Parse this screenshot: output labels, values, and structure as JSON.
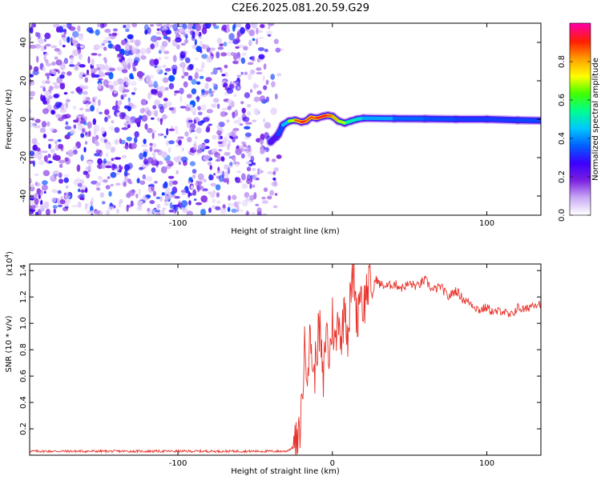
{
  "figure_title": "C2E6.2025.081.20.59.G29",
  "chart_data": [
    {
      "type": "heatmap",
      "title": "",
      "xlabel": "Height of straight line (km)",
      "ylabel": "Frequency (Hz)",
      "xlim": [
        -196,
        135
      ],
      "ylim": [
        -50,
        50
      ],
      "x_ticks": [
        -100,
        0,
        100
      ],
      "x_tick_labels": [
        "-100",
        "",
        "100"
      ],
      "y_ticks": [
        -40,
        -20,
        0,
        20,
        40
      ],
      "y_tick_labels": [
        "-40",
        "-20",
        "0",
        "20",
        "40"
      ],
      "noise_region_x": [
        -196,
        -35
      ],
      "signal_track": {
        "x": [
          -40,
          -35,
          -32,
          -28,
          -24,
          -20,
          -17,
          -14,
          -10,
          -6,
          -3,
          0,
          4,
          8,
          12,
          16,
          20,
          40,
          60,
          80,
          100,
          120,
          135
        ],
        "freq": [
          -12,
          -8,
          -3,
          -1,
          -0.5,
          -1.5,
          -1,
          1,
          0.5,
          1.5,
          2,
          1.5,
          -1,
          -2,
          -1,
          0,
          0.5,
          0.3,
          0.2,
          0,
          0,
          -0.5,
          -0.7
        ],
        "amplitude": [
          0.2,
          0.35,
          0.45,
          0.6,
          0.8,
          0.95,
          0.9,
          0.85,
          0.9,
          0.95,
          0.9,
          0.85,
          0.75,
          0.65,
          0.6,
          0.6,
          0.55,
          0.45,
          0.42,
          0.4,
          0.38,
          0.4,
          0.4
        ]
      },
      "colorbar": {
        "label": "Normalized spectral amplitude",
        "range": [
          0.0,
          1.0
        ],
        "ticks": [
          0.0,
          0.2,
          0.4,
          0.6,
          0.8
        ],
        "tick_labels": [
          "0.0",
          "0.2",
          "0.4",
          "0.6",
          "0.8"
        ],
        "colors": [
          "#ffffff",
          "#c9a8f5",
          "#7a1fe0",
          "#3a00ff",
          "#0060ff",
          "#00c8ff",
          "#00ff90",
          "#40ff00",
          "#ffff00",
          "#ffa000",
          "#ff2000",
          "#ff00a0"
        ]
      }
    },
    {
      "type": "line",
      "title": "",
      "xlabel": "Height of straight line (km)",
      "ylabel": "SNR (10 * v/v)",
      "y_multiplier": "(x10",
      "y_multiplier_exp": "4",
      "y_multiplier_close": ")",
      "xlim": [
        -196,
        135
      ],
      "ylim": [
        0,
        1.45
      ],
      "x_ticks": [
        -100,
        0,
        100
      ],
      "x_tick_labels": [
        "-100",
        "0",
        "100"
      ],
      "y_ticks": [
        0.2,
        0.4,
        0.6,
        0.8,
        1.0,
        1.2,
        1.4
      ],
      "y_tick_labels": [
        "0.2",
        "0.4",
        "0.6",
        "0.8",
        "1.0",
        "1.2",
        "1.4"
      ],
      "line_color": "#e8322a",
      "series": [
        {
          "x": [
            -196,
            -150,
            -100,
            -60,
            -30,
            -22,
            -20,
            -18,
            -16,
            -14,
            -12,
            -10,
            -8,
            -6,
            -4,
            -2,
            0,
            2,
            4,
            6,
            8,
            10,
            12,
            14,
            16,
            18,
            20,
            22,
            24,
            26,
            28,
            30,
            35,
            40,
            45,
            50,
            55,
            60,
            65,
            70,
            75,
            80,
            85,
            90,
            95,
            100,
            105,
            110,
            115,
            120,
            125,
            130,
            135
          ],
          "y": [
            0.03,
            0.03,
            0.03,
            0.03,
            0.03,
            0.08,
            0.35,
            0.8,
            0.7,
            0.9,
            0.55,
            0.85,
            0.95,
            0.5,
            1.0,
            0.7,
            1.05,
            0.8,
            1.1,
            0.85,
            1.2,
            0.9,
            1.25,
            1.4,
            1.0,
            1.3,
            1.1,
            1.25,
            1.3,
            1.2,
            1.35,
            1.3,
            1.28,
            1.3,
            1.27,
            1.3,
            1.28,
            1.33,
            1.25,
            1.28,
            1.2,
            1.25,
            1.18,
            1.15,
            1.1,
            1.12,
            1.08,
            1.1,
            1.05,
            1.12,
            1.1,
            1.15,
            1.15
          ]
        }
      ]
    }
  ]
}
